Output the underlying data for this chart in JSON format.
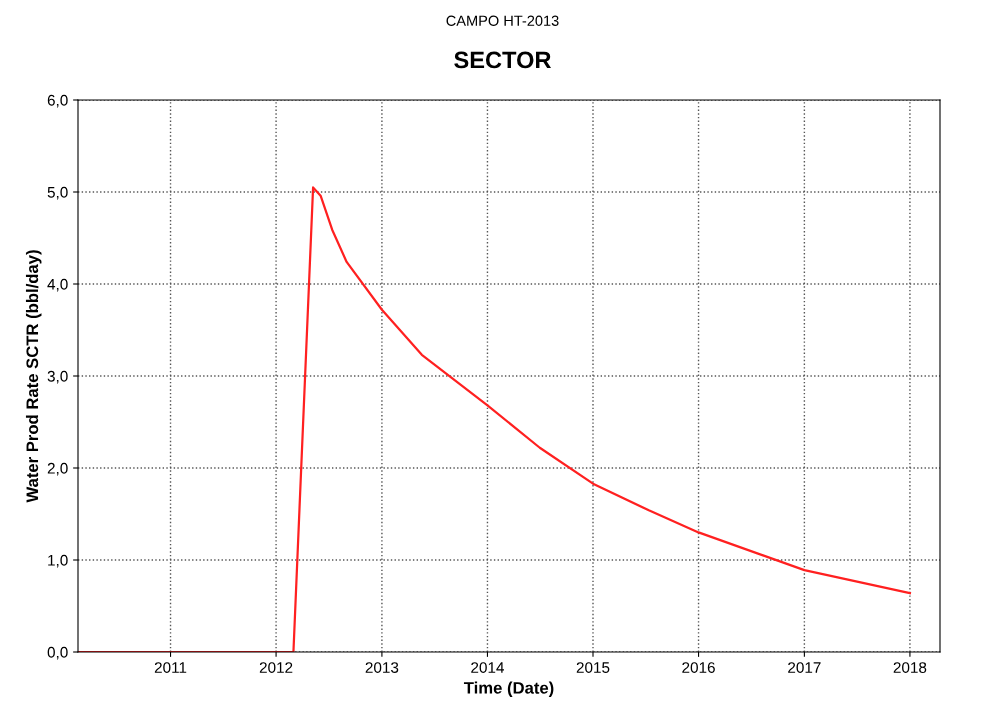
{
  "chart_data": {
    "type": "line",
    "title": "CAMPO HT-2013",
    "subtitle": "SECTOR",
    "xlabel": "Time (Date)",
    "ylabel": "Water Prod Rate SCTR (bbl/day)",
    "x": [
      "2010-02-15",
      "2012-03-01",
      "2012-05-08",
      "2012-06-03",
      "2012-07-13",
      "2012-09-01",
      "2013-01-01",
      "2013-05-19",
      "2014-01-01",
      "2014-07-01",
      "2015-01-01",
      "2015-07-13",
      "2016-01-01",
      "2017-01-01",
      "2018-01-01"
    ],
    "series": [
      {
        "color": "#ff2020",
        "values": [
          0,
          0,
          5.05,
          4.96,
          4.59,
          4.24,
          3.72,
          3.23,
          2.68,
          2.22,
          1.83,
          1.54,
          1.3,
          0.89,
          0.64
        ]
      }
    ],
    "xlim": [
      "2010-02-15",
      "2018-04-15"
    ],
    "xticks": [
      {
        "value": "2011",
        "label": "2011"
      },
      {
        "value": "2012",
        "label": "2012"
      },
      {
        "value": "2013",
        "label": "2013"
      },
      {
        "value": "2014",
        "label": "2014"
      },
      {
        "value": "2015",
        "label": "2015"
      },
      {
        "value": "2016",
        "label": "2016"
      },
      {
        "value": "2017",
        "label": "2017"
      },
      {
        "value": "2018",
        "label": "2018"
      }
    ],
    "ylim": [
      0,
      6
    ],
    "yticks": [
      {
        "value": 0,
        "label": "0,0"
      },
      {
        "value": 1,
        "label": "1,0"
      },
      {
        "value": 2,
        "label": "2,0"
      },
      {
        "value": 3,
        "label": "3,0"
      },
      {
        "value": 4,
        "label": "4,0"
      },
      {
        "value": 5,
        "label": "5,0"
      },
      {
        "value": 6,
        "label": "6,0"
      }
    ],
    "grid": true,
    "marker": "none",
    "line_style": "solid"
  }
}
